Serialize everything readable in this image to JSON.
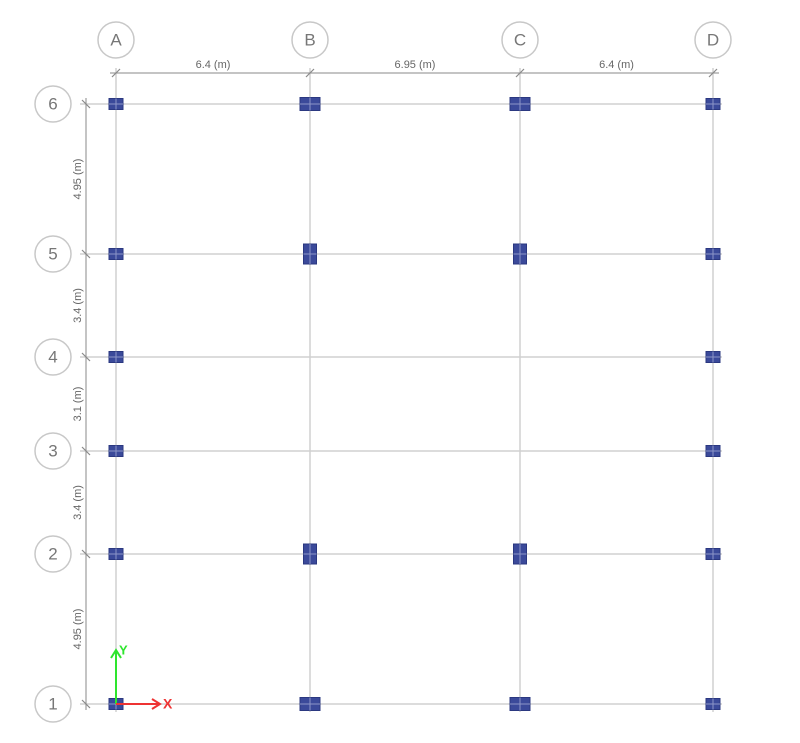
{
  "grid_x": [
    "A",
    "B",
    "C",
    "D"
  ],
  "grid_y": [
    "6",
    "5",
    "4",
    "3",
    "2",
    "1"
  ],
  "dimensions_x": [
    "6.4 (m)",
    "6.95 (m)",
    "6.4 (m)"
  ],
  "dimensions_y": [
    "4.95 (m)",
    "3.4 (m)",
    "3.1 (m)",
    "3.4 (m)",
    "4.95 (m)"
  ],
  "axes": {
    "x": "X",
    "y": "Y"
  }
}
